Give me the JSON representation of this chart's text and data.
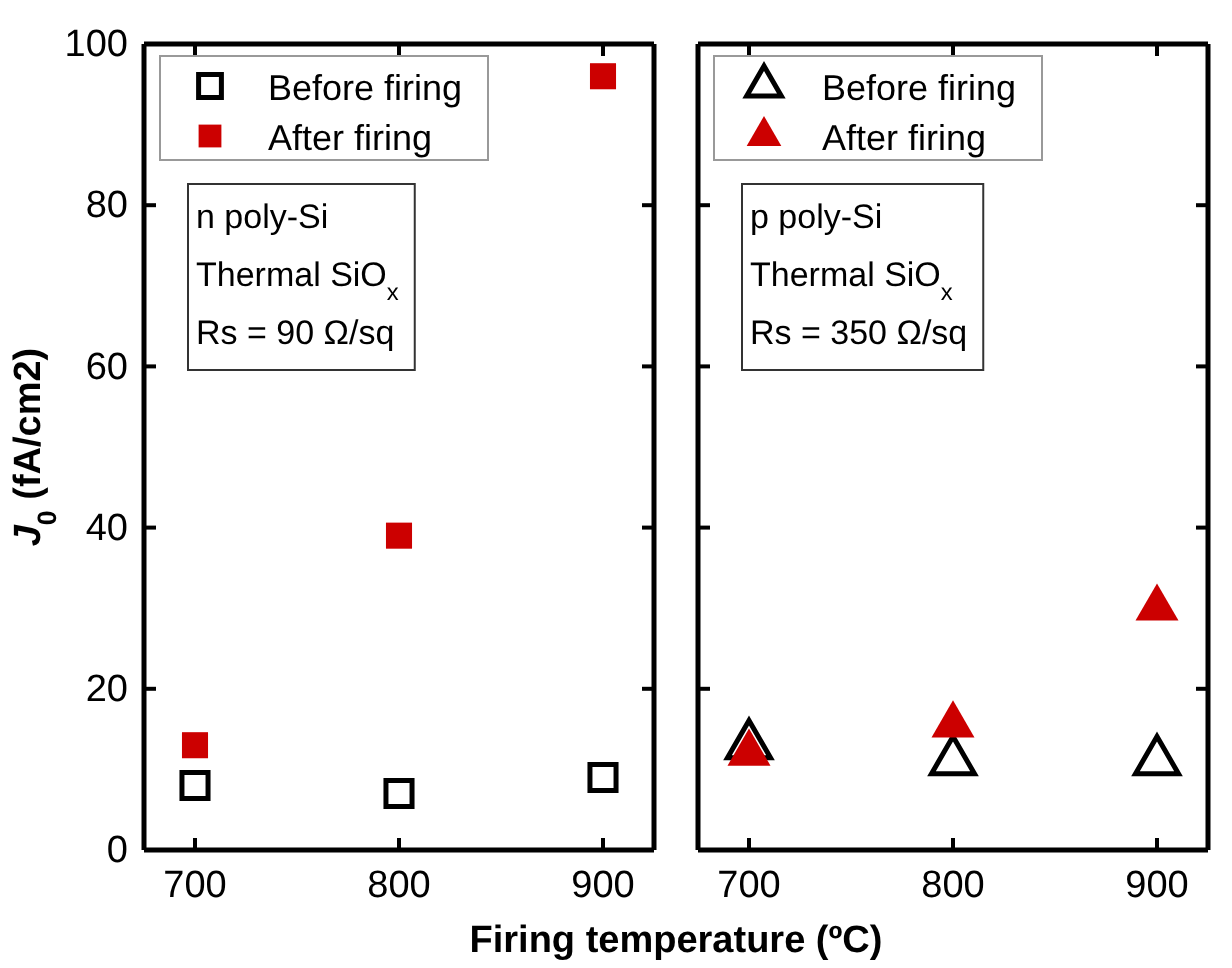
{
  "chart_data": [
    {
      "type": "scatter",
      "marker": "square",
      "x": [
        700,
        800,
        900
      ],
      "xlim": [
        675,
        925
      ],
      "xticks": [
        700,
        800,
        900
      ],
      "ylim": [
        0,
        100
      ],
      "yticks": [
        0,
        20,
        40,
        60,
        80,
        100
      ],
      "ylabel": "J$_{0}$ (fA/cm2)",
      "xlabel": "Firing temperature (ºC)",
      "legend": "top left",
      "grid": false,
      "series": [
        {
          "name": "Before firing",
          "color": "#000000",
          "values": [
            8,
            7,
            9
          ]
        },
        {
          "name": "After firing",
          "color": "#cc0000",
          "values": [
            13,
            39,
            96
          ]
        }
      ],
      "annotations": [
        "n poly-Si",
        "Thermal SiO$_{x}$",
        "Rs = 90 Ω/sq"
      ]
    },
    {
      "type": "scatter",
      "marker": "triangle",
      "x": [
        700,
        800,
        900
      ],
      "xlim": [
        675,
        925
      ],
      "xticks": [
        700,
        800,
        900
      ],
      "ylim": [
        0,
        100
      ],
      "yticks": [
        0,
        20,
        40,
        60,
        80,
        100
      ],
      "tick_labels": "x",
      "legend": "top left",
      "grid": false,
      "series": [
        {
          "name": "Before firing",
          "color": "#000000",
          "values": [
            13,
            11,
            11
          ]
        },
        {
          "name": "After firing",
          "color": "#cc0000",
          "values": [
            12,
            15.5,
            30
          ]
        }
      ],
      "annotations": [
        "p poly-Si",
        "Thermal SiO$_{x}$",
        "Rs = 350 Ω/sq"
      ]
    }
  ]
}
